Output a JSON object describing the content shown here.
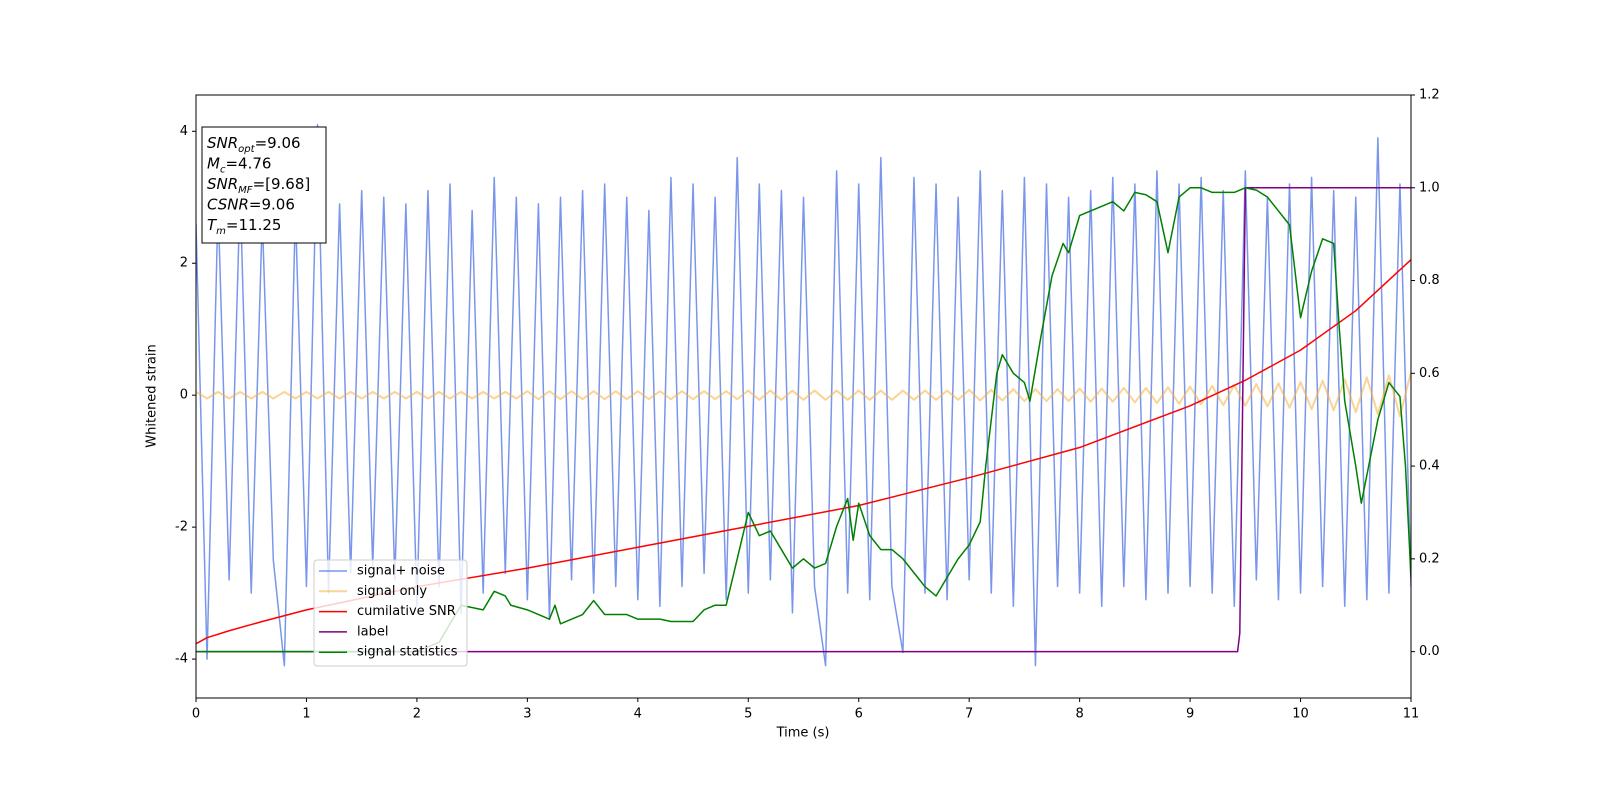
{
  "chart_data": {
    "type": "line",
    "xlabel": "Time (s)",
    "ylabel": "Whitened strain",
    "xlim": [
      0,
      11
    ],
    "xticks": [
      0,
      1,
      2,
      3,
      4,
      5,
      6,
      7,
      8,
      9,
      10,
      11
    ],
    "ylim": [
      -4.59,
      4.55
    ],
    "yticks": [
      -4,
      -2,
      0,
      2,
      4
    ],
    "y2lim": [
      -0.1,
      1.2
    ],
    "y2ticks": [
      {
        "value": 0,
        "label": "0.0"
      },
      0.2,
      0.4,
      0.6,
      0.8,
      {
        "value": 1,
        "label": "1.0"
      },
      1.2
    ],
    "legend": "lower left",
    "annotations": [
      {
        "base": "SNR",
        "sub": "opt",
        "text": "=9.06"
      },
      {
        "base": "M",
        "sub": "c",
        "text": "=4.76"
      },
      {
        "base": "SNR",
        "sub": "MF",
        "text": "=[9.68]"
      },
      {
        "base": "CSNR",
        "text": "=9.06"
      },
      {
        "base": "T",
        "sub": "m",
        "text": "=11.25"
      }
    ],
    "x": [
      0,
      0.1,
      0.2,
      0.3,
      0.4,
      0.5,
      0.6,
      0.7,
      0.8,
      0.9,
      1,
      1.1,
      1.2,
      1.3,
      1.4,
      1.5,
      1.6,
      1.7,
      1.8,
      1.9,
      2,
      2.1,
      2.2,
      2.3,
      2.4,
      2.5,
      2.6,
      2.7,
      2.8,
      2.9,
      3,
      3.1,
      3.2,
      3.3,
      3.4,
      3.5,
      3.6,
      3.7,
      3.8,
      3.9,
      4,
      4.1,
      4.2,
      4.3,
      4.4,
      4.5,
      4.6,
      4.7,
      4.8,
      4.9,
      5,
      5.1,
      5.2,
      5.3,
      5.4,
      5.5,
      5.6,
      5.7,
      5.8,
      5.9,
      6,
      6.1,
      6.2,
      6.3,
      6.4,
      6.5,
      6.6,
      6.7,
      6.8,
      6.9,
      7,
      7.1,
      7.2,
      7.3,
      7.4,
      7.5,
      7.6,
      7.7,
      7.8,
      7.9,
      8,
      8.1,
      8.2,
      8.3,
      8.4,
      8.5,
      8.6,
      8.7,
      8.8,
      8.9,
      9,
      9.1,
      9.2,
      9.3,
      9.4,
      9.5,
      9.6,
      9.7,
      9.8,
      9.9,
      10,
      10.1,
      10.2,
      10.3,
      10.4,
      10.5,
      10.6,
      10.7,
      10.8,
      10.9,
      11
    ],
    "series": [
      {
        "name": "signal+ noise",
        "color": "#4169e1",
        "values": [
          2.6,
          -4.0,
          2.9,
          -2.8,
          3.1,
          -3.0,
          2.7,
          -2.5,
          -4.1,
          2.8,
          -2.9,
          4.1,
          -3.0,
          2.9,
          -2.7,
          3.1,
          -2.6,
          3.0,
          -2.8,
          2.9,
          -3.2,
          3.1,
          -2.9,
          3.2,
          -3.3,
          2.8,
          -3.0,
          3.3,
          -2.7,
          3.0,
          -3.1,
          2.9,
          -3.4,
          3.0,
          -2.8,
          3.1,
          -3.0,
          3.2,
          -2.9,
          3.0,
          -3.1,
          2.8,
          -3.2,
          3.3,
          -2.9,
          3.2,
          -2.7,
          3.0,
          -3.1,
          3.6,
          -3.0,
          3.2,
          -2.8,
          3.1,
          -3.3,
          3.0,
          -2.9,
          -4.1,
          3.4,
          -3.0,
          3.2,
          -3.1,
          3.6,
          -2.9,
          -3.9,
          3.3,
          -3.0,
          3.2,
          -3.1,
          3.0,
          -2.8,
          3.4,
          -3.0,
          3.1,
          -3.2,
          3.3,
          -4.1,
          3.2,
          -2.9,
          3.0,
          -3.0,
          3.1,
          -3.2,
          3.3,
          -2.9,
          3.2,
          -3.1,
          3.4,
          -3.0,
          3.2,
          -2.9,
          3.3,
          -3.0,
          3.1,
          -3.2,
          3.4,
          -2.8,
          3.0,
          -3.1,
          3.2,
          -3.0,
          3.3,
          -2.9,
          3.1,
          -3.2,
          3.0,
          -3.1,
          3.9,
          -3.0,
          3.2,
          -2.9
        ]
      },
      {
        "name": "signal only",
        "color": "#f5b041",
        "values": [
          0.05,
          -0.05,
          0.05,
          -0.05,
          0.05,
          -0.05,
          0.05,
          -0.05,
          0.05,
          -0.05,
          0.05,
          -0.05,
          0.05,
          -0.05,
          0.05,
          -0.05,
          0.05,
          -0.05,
          0.05,
          -0.05,
          0.05,
          -0.05,
          0.05,
          -0.05,
          0.05,
          -0.05,
          0.05,
          -0.05,
          0.05,
          -0.05,
          0.06,
          -0.06,
          0.06,
          -0.06,
          0.06,
          -0.06,
          0.06,
          -0.06,
          0.06,
          -0.06,
          0.06,
          -0.06,
          0.06,
          -0.06,
          0.06,
          -0.06,
          0.06,
          -0.06,
          0.06,
          -0.06,
          0.07,
          -0.07,
          0.07,
          -0.07,
          0.07,
          -0.07,
          0.07,
          -0.07,
          0.07,
          -0.07,
          0.07,
          -0.07,
          0.07,
          -0.07,
          0.07,
          -0.07,
          0.07,
          -0.07,
          0.07,
          -0.07,
          0.08,
          -0.08,
          0.08,
          -0.08,
          0.09,
          -0.09,
          0.09,
          -0.09,
          0.09,
          -0.09,
          0.1,
          -0.1,
          0.1,
          -0.1,
          0.11,
          -0.11,
          0.11,
          -0.12,
          0.12,
          -0.13,
          0.13,
          -0.14,
          0.14,
          -0.15,
          0.15,
          -0.16,
          0.17,
          -0.17,
          0.18,
          -0.19,
          0.2,
          -0.21,
          0.22,
          -0.23,
          0.24,
          -0.26,
          0.27,
          -0.29,
          0.3,
          -0.32,
          0.35
        ]
      },
      {
        "name": "cumilative SNR",
        "color": "#ff0000",
        "axis": "y2",
        "x": [
          0,
          0.1,
          0.3,
          0.6,
          1,
          2,
          3,
          4,
          5,
          6,
          7,
          8,
          9,
          9.5,
          10,
          10.5,
          11
        ],
        "values": [
          0.017,
          0.03,
          0.045,
          0.065,
          0.09,
          0.14,
          0.18,
          0.225,
          0.27,
          0.315,
          0.375,
          0.44,
          0.53,
          0.585,
          0.65,
          0.735,
          0.845
        ]
      },
      {
        "name": "label",
        "color": "#800080",
        "axis": "y2",
        "x": [
          0,
          9.43,
          9.45,
          9.5,
          11
        ],
        "values": [
          0,
          0,
          0.04,
          1,
          1
        ]
      },
      {
        "name": "signal statistics",
        "color": "#008000",
        "axis": "y2",
        "x": [
          0,
          1,
          2,
          2.2,
          2.4,
          2.6,
          2.7,
          2.8,
          2.85,
          3.0,
          3.2,
          3.25,
          3.3,
          3.5,
          3.6,
          3.7,
          3.9,
          4.0,
          4.2,
          4.3,
          4.5,
          4.6,
          4.7,
          4.8,
          4.9,
          5.0,
          5.1,
          5.2,
          5.3,
          5.4,
          5.5,
          5.6,
          5.7,
          5.8,
          5.9,
          5.95,
          6.0,
          6.1,
          6.2,
          6.3,
          6.4,
          6.5,
          6.6,
          6.7,
          6.8,
          6.9,
          7.0,
          7.1,
          7.15,
          7.25,
          7.3,
          7.4,
          7.5,
          7.55,
          7.65,
          7.75,
          7.85,
          7.9,
          8.0,
          8.1,
          8.2,
          8.3,
          8.4,
          8.5,
          8.6,
          8.7,
          8.8,
          8.9,
          9.0,
          9.1,
          9.2,
          9.3,
          9.4,
          9.5,
          9.6,
          9.7,
          9.8,
          9.9,
          10.0,
          10.1,
          10.2,
          10.3,
          10.35,
          10.4,
          10.5,
          10.55,
          10.6,
          10.7,
          10.8,
          10.9,
          10.95,
          11.0
        ],
        "values": [
          0.0,
          0.0,
          0.0,
          0.02,
          0.1,
          0.09,
          0.13,
          0.12,
          0.1,
          0.09,
          0.07,
          0.1,
          0.06,
          0.08,
          0.11,
          0.08,
          0.08,
          0.07,
          0.07,
          0.065,
          0.065,
          0.09,
          0.1,
          0.1,
          0.2,
          0.3,
          0.25,
          0.26,
          0.22,
          0.18,
          0.2,
          0.18,
          0.19,
          0.27,
          0.33,
          0.24,
          0.32,
          0.25,
          0.22,
          0.22,
          0.2,
          0.17,
          0.14,
          0.12,
          0.16,
          0.2,
          0.23,
          0.28,
          0.4,
          0.6,
          0.64,
          0.6,
          0.58,
          0.54,
          0.68,
          0.81,
          0.88,
          0.86,
          0.94,
          0.95,
          0.96,
          0.97,
          0.95,
          0.99,
          0.985,
          0.97,
          0.86,
          0.98,
          1.0,
          1.0,
          0.99,
          0.99,
          0.99,
          1.0,
          0.995,
          0.98,
          0.95,
          0.92,
          0.72,
          0.82,
          0.89,
          0.88,
          0.7,
          0.54,
          0.4,
          0.32,
          0.38,
          0.5,
          0.58,
          0.55,
          0.4,
          0.16
        ]
      }
    ]
  }
}
